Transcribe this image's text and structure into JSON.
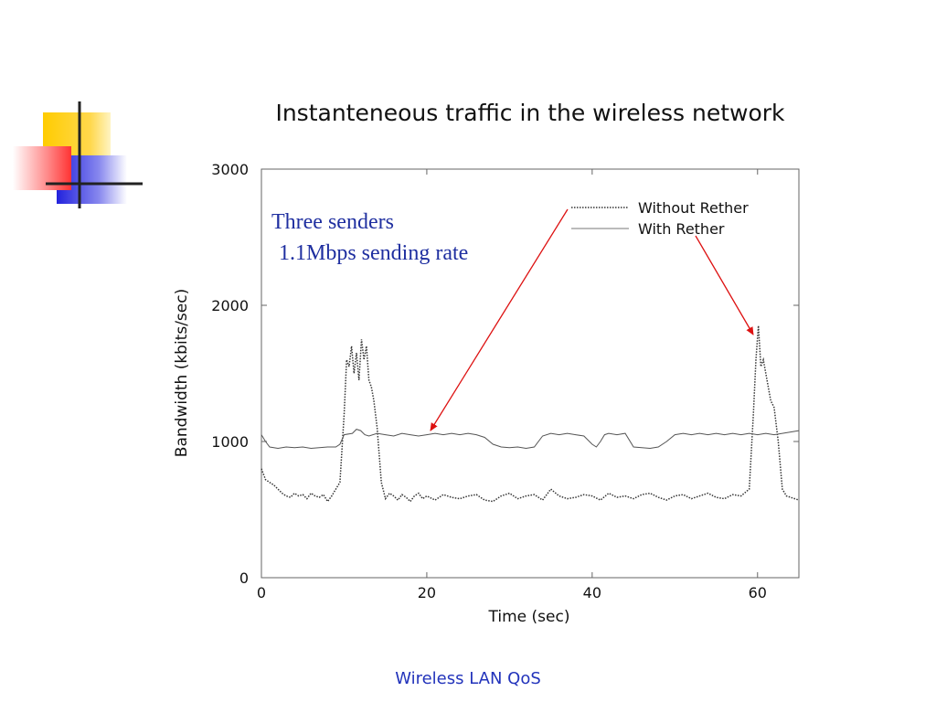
{
  "slide": {
    "footer": "Wireless LAN QoS",
    "annotation": {
      "line1": "Three senders",
      "line2": "1.1Mbps sending rate",
      "color": "#1f2fa0",
      "arrow_color": "#dd1111"
    },
    "logo": {
      "name": "decorative-squares-logo",
      "colors": {
        "yellow": "#ffcc00",
        "red": "#ff3333",
        "blue": "#2222dd",
        "lines": "#222222"
      }
    }
  },
  "chart_data": {
    "type": "line",
    "title": "Instanteneous traffic in the wireless network",
    "xlabel": "Time (sec)",
    "ylabel": "Bandwidth (kbits/sec)",
    "xlim": [
      0,
      65
    ],
    "ylim": [
      0,
      3000
    ],
    "xticks": [
      0,
      20,
      40,
      60
    ],
    "yticks": [
      0,
      1000,
      2000,
      3000
    ],
    "grid": false,
    "legend_position": "top-right",
    "series": [
      {
        "name": "Without Rether",
        "style": "dotted",
        "color": "#333333",
        "points": [
          [
            0,
            800
          ],
          [
            0.5,
            720
          ],
          [
            1,
            700
          ],
          [
            1.5,
            680
          ],
          [
            2,
            650
          ],
          [
            2.5,
            620
          ],
          [
            3,
            600
          ],
          [
            3.5,
            590
          ],
          [
            4,
            620
          ],
          [
            4.5,
            600
          ],
          [
            5,
            610
          ],
          [
            5.5,
            580
          ],
          [
            6,
            620
          ],
          [
            6.5,
            600
          ],
          [
            7,
            590
          ],
          [
            7.5,
            610
          ],
          [
            8,
            560
          ],
          [
            8.5,
            600
          ],
          [
            9,
            650
          ],
          [
            9.5,
            700
          ],
          [
            10,
            1200
          ],
          [
            10.3,
            1600
          ],
          [
            10.6,
            1550
          ],
          [
            10.9,
            1700
          ],
          [
            11.2,
            1500
          ],
          [
            11.5,
            1650
          ],
          [
            11.8,
            1450
          ],
          [
            12.1,
            1750
          ],
          [
            12.4,
            1600
          ],
          [
            12.7,
            1700
          ],
          [
            13,
            1450
          ],
          [
            13.3,
            1400
          ],
          [
            13.6,
            1300
          ],
          [
            14,
            1100
          ],
          [
            14.5,
            700
          ],
          [
            15,
            580
          ],
          [
            15.5,
            620
          ],
          [
            16,
            600
          ],
          [
            16.5,
            570
          ],
          [
            17,
            610
          ],
          [
            17.5,
            590
          ],
          [
            18,
            560
          ],
          [
            18.5,
            600
          ],
          [
            19,
            620
          ],
          [
            19.5,
            580
          ],
          [
            20,
            600
          ],
          [
            21,
            570
          ],
          [
            22,
            610
          ],
          [
            23,
            590
          ],
          [
            24,
            580
          ],
          [
            25,
            600
          ],
          [
            26,
            610
          ],
          [
            27,
            570
          ],
          [
            28,
            560
          ],
          [
            29,
            600
          ],
          [
            30,
            620
          ],
          [
            31,
            580
          ],
          [
            32,
            600
          ],
          [
            33,
            610
          ],
          [
            34,
            570
          ],
          [
            35,
            650
          ],
          [
            36,
            600
          ],
          [
            37,
            580
          ],
          [
            38,
            590
          ],
          [
            39,
            610
          ],
          [
            40,
            600
          ],
          [
            41,
            570
          ],
          [
            42,
            620
          ],
          [
            43,
            590
          ],
          [
            44,
            600
          ],
          [
            45,
            580
          ],
          [
            46,
            610
          ],
          [
            47,
            620
          ],
          [
            48,
            590
          ],
          [
            49,
            570
          ],
          [
            50,
            600
          ],
          [
            51,
            610
          ],
          [
            52,
            580
          ],
          [
            53,
            600
          ],
          [
            54,
            620
          ],
          [
            55,
            590
          ],
          [
            56,
            580
          ],
          [
            57,
            610
          ],
          [
            58,
            600
          ],
          [
            59,
            650
          ],
          [
            59.5,
            1200
          ],
          [
            59.8,
            1600
          ],
          [
            60.1,
            1850
          ],
          [
            60.4,
            1550
          ],
          [
            60.7,
            1600
          ],
          [
            61,
            1500
          ],
          [
            61.3,
            1400
          ],
          [
            61.6,
            1300
          ],
          [
            62,
            1250
          ],
          [
            62.5,
            1000
          ],
          [
            63,
            650
          ],
          [
            63.5,
            600
          ],
          [
            64,
            590
          ],
          [
            65,
            570
          ]
        ]
      },
      {
        "name": "With Rether",
        "style": "solid",
        "color": "#555555",
        "points": [
          [
            0,
            1050
          ],
          [
            0.5,
            1000
          ],
          [
            1,
            960
          ],
          [
            2,
            950
          ],
          [
            3,
            960
          ],
          [
            4,
            955
          ],
          [
            5,
            960
          ],
          [
            6,
            950
          ],
          [
            7,
            955
          ],
          [
            8,
            960
          ],
          [
            9,
            960
          ],
          [
            9.5,
            980
          ],
          [
            10,
            1050
          ],
          [
            11,
            1060
          ],
          [
            11.5,
            1090
          ],
          [
            12,
            1080
          ],
          [
            12.5,
            1050
          ],
          [
            13,
            1040
          ],
          [
            14,
            1060
          ],
          [
            15,
            1050
          ],
          [
            16,
            1040
          ],
          [
            17,
            1060
          ],
          [
            18,
            1050
          ],
          [
            19,
            1040
          ],
          [
            20,
            1050
          ],
          [
            21,
            1060
          ],
          [
            22,
            1050
          ],
          [
            23,
            1060
          ],
          [
            24,
            1050
          ],
          [
            25,
            1060
          ],
          [
            26,
            1050
          ],
          [
            27,
            1030
          ],
          [
            28,
            980
          ],
          [
            29,
            960
          ],
          [
            30,
            955
          ],
          [
            31,
            960
          ],
          [
            32,
            950
          ],
          [
            33,
            960
          ],
          [
            34,
            1040
          ],
          [
            35,
            1060
          ],
          [
            36,
            1050
          ],
          [
            37,
            1060
          ],
          [
            38,
            1050
          ],
          [
            39,
            1040
          ],
          [
            40,
            980
          ],
          [
            40.5,
            960
          ],
          [
            41,
            1000
          ],
          [
            41.5,
            1050
          ],
          [
            42,
            1060
          ],
          [
            43,
            1050
          ],
          [
            44,
            1060
          ],
          [
            45,
            960
          ],
          [
            46,
            955
          ],
          [
            47,
            950
          ],
          [
            48,
            960
          ],
          [
            49,
            1000
          ],
          [
            50,
            1050
          ],
          [
            51,
            1060
          ],
          [
            52,
            1050
          ],
          [
            53,
            1060
          ],
          [
            54,
            1050
          ],
          [
            55,
            1060
          ],
          [
            56,
            1050
          ],
          [
            57,
            1060
          ],
          [
            58,
            1050
          ],
          [
            59,
            1060
          ],
          [
            60,
            1050
          ],
          [
            61,
            1060
          ],
          [
            62,
            1050
          ],
          [
            63,
            1060
          ],
          [
            64,
            1070
          ],
          [
            65,
            1080
          ]
        ]
      }
    ]
  }
}
